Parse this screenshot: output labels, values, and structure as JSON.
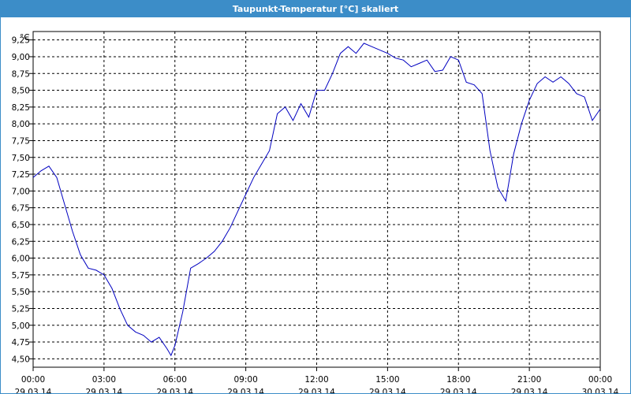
{
  "window": {
    "title": "Taupunkt-Temperatur [°C] skaliert"
  },
  "chart_data": {
    "type": "line",
    "title": "Taupunkt-Temperatur [°C] skaliert",
    "ylabel": "°C",
    "xlabel": "",
    "ylim": [
      4.375,
      9.375
    ],
    "y_ticks": [
      "4,50",
      "4,75",
      "5,00",
      "5,25",
      "5,50",
      "5,75",
      "6,00",
      "6,25",
      "6,50",
      "6,75",
      "7,00",
      "7,25",
      "7,50",
      "7,75",
      "8,00",
      "8,25",
      "8,50",
      "8,75",
      "9,00",
      "9,25"
    ],
    "x_ticks": [
      {
        "time": "00:00",
        "date": "29.03.14"
      },
      {
        "time": "03:00",
        "date": "29.03.14"
      },
      {
        "time": "06:00",
        "date": "29.03.14"
      },
      {
        "time": "09:00",
        "date": "29.03.14"
      },
      {
        "time": "12:00",
        "date": "29.03.14"
      },
      {
        "time": "15:00",
        "date": "29.03.14"
      },
      {
        "time": "18:00",
        "date": "29.03.14"
      },
      {
        "time": "21:00",
        "date": "29.03.14"
      },
      {
        "time": "00:00",
        "date": "30.03.14"
      }
    ],
    "grid": true,
    "line_color": "#0000c0",
    "series": [
      {
        "x": [
          "00:00",
          "00:20",
          "00:40",
          "01:00",
          "01:20",
          "01:40",
          "02:00",
          "02:20",
          "02:40",
          "03:00",
          "03:20",
          "03:40",
          "04:00",
          "04:20",
          "04:40",
          "05:00",
          "05:20",
          "05:40",
          "05:50",
          "06:00",
          "06:20",
          "06:40",
          "07:00",
          "07:20",
          "07:40",
          "08:00",
          "08:20",
          "08:40",
          "09:00",
          "09:20",
          "09:40",
          "10:00",
          "10:20",
          "10:40",
          "11:00",
          "11:20",
          "11:40",
          "12:00",
          "12:20",
          "12:40",
          "13:00",
          "13:20",
          "13:40",
          "14:00",
          "14:20",
          "14:40",
          "15:00",
          "15:20",
          "15:40",
          "16:00",
          "16:20",
          "16:40",
          "17:00",
          "17:20",
          "17:40",
          "18:00",
          "18:20",
          "18:40",
          "19:00",
          "19:20",
          "19:40",
          "20:00",
          "20:20",
          "20:40",
          "21:00",
          "21:20",
          "21:40",
          "22:00",
          "22:20",
          "22:40",
          "23:00",
          "23:20",
          "23:40",
          "00:00"
        ],
        "y": [
          7.2,
          7.3,
          7.37,
          7.2,
          6.8,
          6.4,
          6.05,
          5.85,
          5.82,
          5.75,
          5.55,
          5.25,
          5.0,
          4.9,
          4.85,
          4.75,
          4.82,
          4.65,
          4.55,
          4.7,
          5.2,
          5.85,
          5.92,
          6.0,
          6.1,
          6.25,
          6.45,
          6.7,
          6.95,
          7.2,
          7.4,
          7.6,
          8.15,
          8.25,
          8.05,
          8.3,
          8.1,
          8.5,
          8.5,
          8.75,
          9.05,
          9.15,
          9.05,
          9.2,
          9.15,
          9.1,
          9.05,
          8.98,
          8.95,
          8.85,
          8.9,
          8.95,
          8.78,
          8.8,
          9.0,
          8.95,
          8.62,
          8.58,
          8.45,
          7.6,
          7.05,
          6.85,
          7.55,
          8.0,
          8.35,
          8.6,
          8.7,
          8.62,
          8.7,
          8.6,
          8.45,
          8.4,
          8.05,
          8.22
        ]
      }
    ]
  }
}
